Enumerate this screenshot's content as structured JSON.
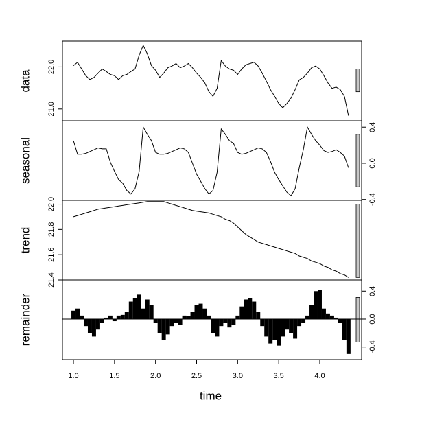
{
  "chart_data": [
    {
      "type": "line",
      "ylabel": "data",
      "color": "#000000",
      "x": [
        1,
        1.05,
        1.1,
        1.15,
        1.2,
        1.25,
        1.3,
        1.35,
        1.4,
        1.45,
        1.5,
        1.55,
        1.6,
        1.65,
        1.7,
        1.75,
        1.8,
        1.85,
        1.9,
        1.95,
        2,
        2.05,
        2.1,
        2.15,
        2.2,
        2.25,
        2.3,
        2.35,
        2.4,
        2.45,
        2.5,
        2.55,
        2.6,
        2.65,
        2.7,
        2.75,
        2.8,
        2.85,
        2.9,
        2.95,
        3,
        3.05,
        3.1,
        3.15,
        3.2,
        3.25,
        3.3,
        3.35,
        3.4,
        3.45,
        3.5,
        3.55,
        3.6,
        3.65,
        3.7,
        3.75,
        3.8,
        3.85,
        3.9,
        3.95,
        4,
        4.05,
        4.1,
        4.15,
        4.2,
        4.25,
        4.3,
        4.35
      ],
      "values": [
        22.03,
        22.11,
        21.95,
        21.79,
        21.7,
        21.75,
        21.85,
        21.95,
        21.89,
        21.82,
        21.79,
        21.7,
        21.79,
        21.82,
        21.89,
        21.95,
        22.28,
        22.51,
        22.31,
        22.03,
        21.92,
        21.75,
        21.85,
        21.98,
        22.02,
        22.08,
        21.98,
        22.02,
        22.08,
        21.98,
        21.85,
        21.75,
        21.62,
        21.41,
        21.3,
        21.49,
        22.15,
        22.02,
        21.95,
        21.92,
        21.82,
        21.95,
        22.05,
        22.08,
        22.11,
        22.02,
        21.85,
        21.66,
        21.46,
        21.3,
        21.13,
        21.03,
        21.13,
        21.26,
        21.46,
        21.69,
        21.75,
        21.85,
        21.98,
        22.02,
        21.95,
        21.79,
        21.62,
        21.49,
        21.52,
        21.46,
        21.3,
        20.84
      ],
      "xlim": [
        0.866,
        4.51
      ],
      "ylim": [
        20.72,
        22.61
      ],
      "yaxis_side": "left",
      "yticks": [
        {
          "value": 21,
          "label": "21.0"
        },
        {
          "value": 22,
          "label": "22.0"
        }
      ],
      "range_bar": [
        21.41,
        21.95
      ]
    },
    {
      "type": "line",
      "ylabel": "seasonal",
      "color": "#000000",
      "x": [
        1,
        1.05,
        1.1,
        1.15,
        1.2,
        1.25,
        1.3,
        1.35,
        1.4,
        1.45,
        1.5,
        1.55,
        1.6,
        1.65,
        1.7,
        1.75,
        1.8,
        1.85,
        1.9,
        1.95,
        2,
        2.05,
        2.1,
        2.15,
        2.2,
        2.25,
        2.3,
        2.35,
        2.4,
        2.45,
        2.5,
        2.55,
        2.6,
        2.65,
        2.7,
        2.75,
        2.8,
        2.85,
        2.9,
        2.95,
        3,
        3.05,
        3.1,
        3.15,
        3.2,
        3.25,
        3.3,
        3.35,
        3.4,
        3.45,
        3.5,
        3.55,
        3.6,
        3.65,
        3.7,
        3.75,
        3.8,
        3.85,
        3.9,
        3.95,
        4,
        4.05,
        4.1,
        4.15,
        4.2,
        4.25,
        4.3,
        4.35
      ],
      "values": [
        0.25,
        0.1,
        0.1,
        0.11,
        0.13,
        0.15,
        0.17,
        0.16,
        0.16,
        0.01,
        -0.09,
        -0.18,
        -0.22,
        -0.3,
        -0.34,
        -0.28,
        -0.09,
        0.4,
        0.32,
        0.25,
        0.12,
        0.1,
        0.1,
        0.11,
        0.13,
        0.15,
        0.17,
        0.16,
        0.12,
        0.0,
        -0.12,
        -0.2,
        -0.28,
        -0.34,
        -0.3,
        -0.1,
        0.38,
        0.32,
        0.25,
        0.22,
        0.12,
        0.1,
        0.11,
        0.13,
        0.15,
        0.17,
        0.16,
        0.12,
        0.02,
        -0.1,
        -0.18,
        -0.25,
        -0.32,
        -0.36,
        -0.28,
        -0.05,
        0.15,
        0.4,
        0.32,
        0.25,
        0.2,
        0.14,
        0.12,
        0.13,
        0.15,
        0.12,
        0.08,
        -0.05
      ],
      "xlim": [
        0.866,
        4.51
      ],
      "ylim": [
        -0.41,
        0.47
      ],
      "yaxis_side": "right",
      "yticks": [
        0.4,
        {
          "value": 0,
          "label": "0.0"
        },
        -0.4
      ],
      "range_bar": [
        -0.26,
        0.32
      ]
    },
    {
      "type": "line",
      "ylabel": "trend",
      "color": "#000000",
      "x": [
        1,
        1.05,
        1.1,
        1.15,
        1.2,
        1.25,
        1.3,
        1.35,
        1.4,
        1.45,
        1.5,
        1.55,
        1.6,
        1.65,
        1.7,
        1.75,
        1.8,
        1.85,
        1.9,
        1.95,
        2,
        2.05,
        2.1,
        2.15,
        2.2,
        2.25,
        2.3,
        2.35,
        2.4,
        2.45,
        2.5,
        2.55,
        2.6,
        2.65,
        2.7,
        2.75,
        2.8,
        2.85,
        2.9,
        2.95,
        3,
        3.05,
        3.1,
        3.15,
        3.2,
        3.25,
        3.3,
        3.35,
        3.4,
        3.45,
        3.5,
        3.55,
        3.6,
        3.65,
        3.7,
        3.75,
        3.8,
        3.85,
        3.9,
        3.95,
        4,
        4.05,
        4.1,
        4.15,
        4.2,
        4.25,
        4.3,
        4.35
      ],
      "values": [
        21.9,
        21.91,
        21.92,
        21.93,
        21.94,
        21.95,
        21.96,
        21.965,
        21.97,
        21.975,
        21.98,
        21.985,
        21.99,
        21.995,
        22.0,
        22.005,
        22.01,
        22.015,
        22.02,
        22.02,
        22.02,
        22.02,
        22.02,
        22.01,
        22.0,
        21.99,
        21.98,
        21.97,
        21.96,
        21.95,
        21.945,
        21.94,
        21.935,
        21.93,
        21.92,
        21.91,
        21.9,
        21.88,
        21.87,
        21.85,
        21.82,
        21.79,
        21.76,
        21.74,
        21.72,
        21.7,
        21.69,
        21.68,
        21.67,
        21.66,
        21.65,
        21.64,
        21.63,
        21.62,
        21.61,
        21.59,
        21.58,
        21.57,
        21.55,
        21.54,
        21.53,
        21.51,
        21.5,
        21.48,
        21.47,
        21.45,
        21.44,
        21.42
      ],
      "xlim": [
        0.866,
        4.51
      ],
      "ylim": [
        21.4,
        22.03
      ],
      "yaxis_side": "left",
      "yticks": [
        {
          "value": 22,
          "label": "22.0"
        },
        21.8,
        21.6,
        21.4
      ],
      "range_bar": [
        21.42,
        22.0
      ]
    },
    {
      "type": "bar",
      "ylabel": "remainder",
      "color": "#000000",
      "x": [
        1,
        1.05,
        1.1,
        1.15,
        1.2,
        1.25,
        1.3,
        1.35,
        1.4,
        1.45,
        1.5,
        1.55,
        1.6,
        1.65,
        1.7,
        1.75,
        1.8,
        1.85,
        1.9,
        1.95,
        2,
        2.05,
        2.1,
        2.15,
        2.2,
        2.25,
        2.3,
        2.35,
        2.4,
        2.45,
        2.5,
        2.55,
        2.6,
        2.65,
        2.7,
        2.75,
        2.8,
        2.85,
        2.9,
        2.95,
        3,
        3.05,
        3.1,
        3.15,
        3.2,
        3.25,
        3.3,
        3.35,
        3.4,
        3.45,
        3.5,
        3.55,
        3.6,
        3.65,
        3.7,
        3.75,
        3.8,
        3.85,
        3.9,
        3.95,
        4,
        4.05,
        4.1,
        4.15,
        4.2,
        4.25,
        4.3,
        4.35
      ],
      "values": [
        0.12,
        0.15,
        0.05,
        -0.1,
        -0.2,
        -0.25,
        -0.15,
        -0.05,
        0.02,
        0.05,
        -0.03,
        0.05,
        0.06,
        0.1,
        0.25,
        0.3,
        0.35,
        0.15,
        0.28,
        0.2,
        -0.05,
        -0.2,
        -0.3,
        -0.22,
        -0.1,
        -0.05,
        -0.08,
        0.05,
        0.04,
        0.1,
        0.2,
        0.22,
        0.15,
        0.05,
        -0.2,
        -0.25,
        -0.1,
        -0.05,
        -0.12,
        -0.08,
        0.05,
        0.18,
        0.28,
        0.3,
        0.25,
        0.1,
        -0.1,
        -0.25,
        -0.35,
        -0.3,
        -0.38,
        -0.25,
        -0.15,
        -0.2,
        -0.28,
        -0.1,
        -0.05,
        0.05,
        0.2,
        0.4,
        0.42,
        0.15,
        0.08,
        0.05,
        0.02,
        -0.05,
        -0.3,
        -0.5
      ],
      "xlim": [
        0.866,
        4.51
      ],
      "ylim": [
        -0.58,
        0.56
      ],
      "yaxis_side": "right",
      "yticks": [
        0.4,
        {
          "value": 0,
          "label": "0.0"
        },
        -0.4
      ],
      "range_bar": [
        -0.33,
        0.31
      ],
      "xlabel": "time",
      "xticks": [
        {
          "value": 1,
          "label": "1.0"
        },
        1.5,
        {
          "value": 2,
          "label": "2.0"
        },
        2.5,
        {
          "value": 3,
          "label": "3.0"
        },
        3.5,
        {
          "value": 4,
          "label": "4.0"
        }
      ]
    }
  ]
}
